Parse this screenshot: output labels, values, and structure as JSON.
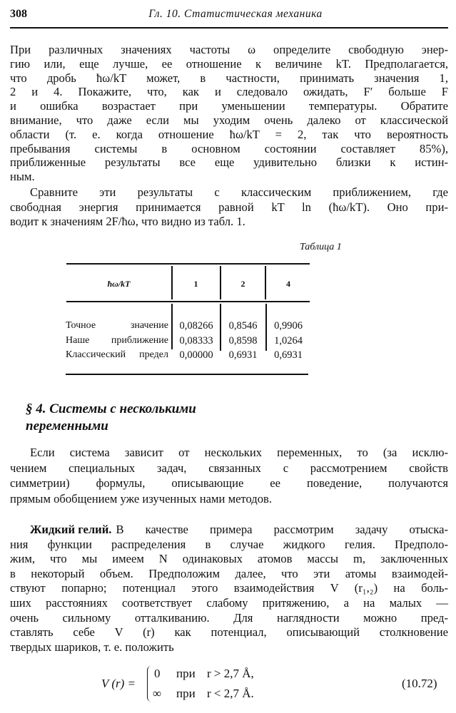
{
  "header": {
    "page_number": "308",
    "running_title": "Гл. 10. Статистическая механика"
  },
  "p1": {
    "lines": [
      "При различных значениях частоты ω определите свободную энер-",
      "гию или, еще лучше, ее отношение к величине kT. Предполагается,",
      "что дробь ħω/kT может, в частности, принимать значения 1,",
      "2 и 4. Покажите, что, как и следовало ожидать, F′ больше F",
      "и ошибка возрастает при уменьшении температуры. Обратите",
      "внимание, что даже если мы уходим очень далеко от классической",
      "области (т. е. когда отношение ħω/kT = 2, так что вероятность",
      "пребывания системы в основном состоянии составляет 85%),",
      "приближенные результаты все еще удивительно близки к истин-",
      "ным."
    ]
  },
  "p2": {
    "lines": [
      "Сравните эти результаты с классическим приближением, где",
      "свободная энергия принимается равной kT ln (ħω/kT). Оно при-",
      "водит к значениям 2F/ħω, что видно из табл. 1."
    ]
  },
  "table": {
    "caption": "Таблица 1",
    "header": [
      "ħω/kT",
      "1",
      "2",
      "4"
    ],
    "rows": [
      {
        "label": "Точное значение",
        "values": [
          "0,08266",
          "0,8546",
          "0,9906"
        ]
      },
      {
        "label": "Наше приближение",
        "values": [
          "0,08333",
          "0,8598",
          "1,0264"
        ]
      },
      {
        "label": "Классический предел",
        "values": [
          "0,00000",
          "0,6931",
          "0,6931"
        ]
      }
    ]
  },
  "section": {
    "lines": [
      "§ 4. Системы с несколькими",
      "переменными"
    ]
  },
  "p3": {
    "lines": [
      "Если система зависит от нескольких переменных, то (за исклю-",
      "чением специальных задач, связанных с рассмотрением свойств",
      "симметрии) формулы, описывающие ее поведение, получаются",
      "прямым обобщением уже изученных нами методов."
    ]
  },
  "p4": {
    "run_in": "Жидкий гелий.",
    "lines": [
      "В качестве примера рассмотрим задачу отыска-",
      "ния функции распределения в случае жидкого гелия. Предполо-",
      "жим, что мы имеем N одинаковых атомов массы m, заключенных",
      "в некоторый объем. Предположим далее, что эти атомы взаимодей-",
      "ствуют попарно; потенциал этого взаимодействия V (r₁,₂) на боль-",
      "ших расстояниях соответствует слабому притяжению, а на малых —",
      "очень сильному отталкиванию. Для наглядности можно пред-",
      "ставлять себе V (r) как потенциал, описывающий столкновение",
      "твердых шариков, т. е. положить"
    ]
  },
  "equation": {
    "lhs": "V (r) =",
    "cases": [
      {
        "value": "0",
        "word": "при",
        "condition": "r > 2,7 Å,"
      },
      {
        "value": "∞",
        "word": "при",
        "condition": "r < 2,7 Å."
      }
    ],
    "number": "(10.72)"
  }
}
